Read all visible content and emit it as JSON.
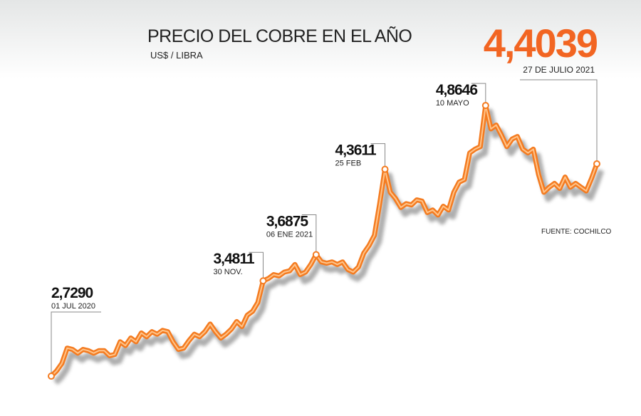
{
  "chart_data": {
    "type": "line",
    "title": "PRECIO DEL COBRE EN EL  AÑO",
    "subtitle": "US$ / LIBRA",
    "source": "FUENTE: COCHILCO",
    "ylim": [
      2.6,
      5.0
    ],
    "series": [
      {
        "color": "#f47b20",
        "values": [
          2.729,
          2.77,
          2.83,
          2.95,
          2.94,
          2.91,
          2.94,
          2.93,
          2.91,
          2.93,
          2.93,
          2.89,
          2.9,
          3.0,
          2.97,
          3.03,
          3.0,
          3.07,
          3.04,
          3.08,
          3.06,
          3.09,
          3.08,
          3.0,
          2.94,
          2.95,
          3.01,
          3.06,
          3.04,
          3.08,
          3.14,
          3.08,
          3.03,
          3.06,
          3.1,
          3.16,
          3.12,
          3.21,
          3.24,
          3.31,
          3.4811,
          3.5,
          3.53,
          3.52,
          3.55,
          3.56,
          3.61,
          3.53,
          3.55,
          3.61,
          3.6875,
          3.63,
          3.62,
          3.63,
          3.61,
          3.63,
          3.57,
          3.55,
          3.59,
          3.7,
          3.76,
          3.84,
          4.09,
          4.3611,
          4.18,
          4.13,
          4.06,
          4.09,
          4.08,
          4.12,
          4.11,
          4.02,
          4.04,
          4.0,
          4.07,
          4.04,
          4.18,
          4.26,
          4.28,
          4.49,
          4.52,
          4.54,
          4.8646,
          4.68,
          4.71,
          4.63,
          4.54,
          4.6,
          4.62,
          4.52,
          4.49,
          4.52,
          4.32,
          4.18,
          4.22,
          4.25,
          4.21,
          4.3,
          4.22,
          4.25,
          4.22,
          4.19,
          4.29,
          4.4039
        ]
      }
    ],
    "annotations": [
      {
        "value": 2.729,
        "label": "2,7290",
        "date": "01 JUL 2020"
      },
      {
        "value": 3.4811,
        "label": "3,4811",
        "date": "30 NOV."
      },
      {
        "value": 3.6875,
        "label": "3,6875",
        "date": "06 ENE 2021"
      },
      {
        "value": 4.3611,
        "label": "4,3611",
        "date": "25 FEB"
      },
      {
        "value": 4.8646,
        "label": "4,8646",
        "date": "10 MAYO"
      },
      {
        "value": 4.4039,
        "label": "4,4039",
        "date": "27 DE JULIO 2021"
      }
    ]
  }
}
